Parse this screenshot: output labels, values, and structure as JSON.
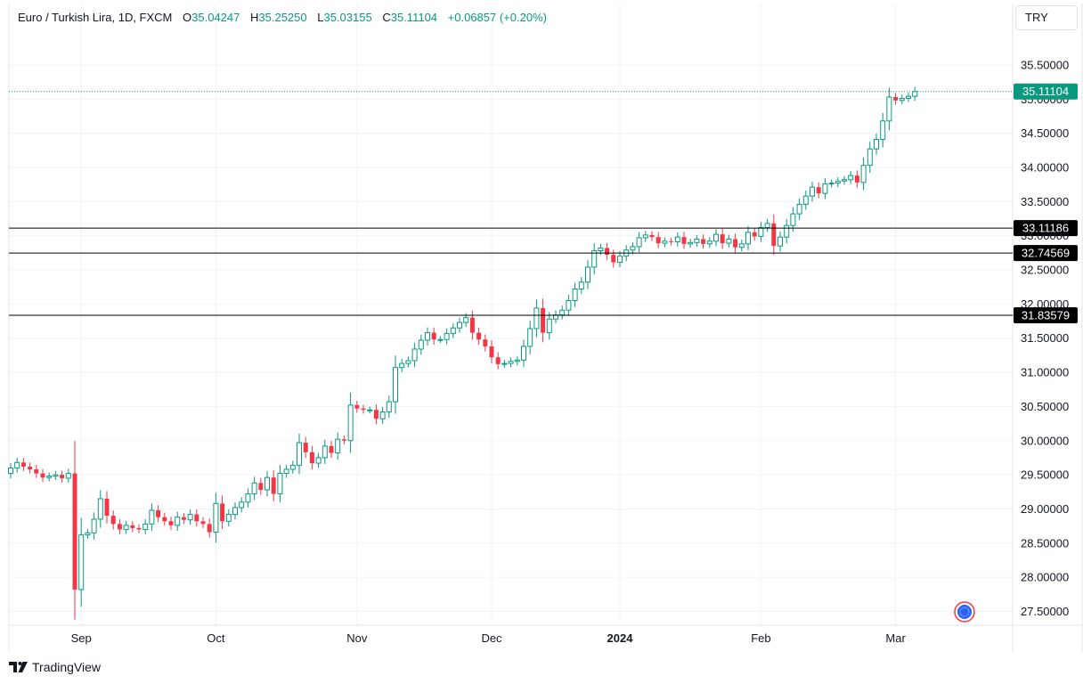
{
  "header": {
    "symbol": "Euro / Turkish Lira, 1D, FXCM",
    "o_label": "O",
    "o_value": "35.04247",
    "h_label": "H",
    "h_value": "35.25250",
    "l_label": "L",
    "l_value": "35.03155",
    "c_label": "C",
    "c_value": "35.11104",
    "change": "+0.06857 (+0.20%)"
  },
  "currency": "TRY",
  "brand": "TradingView",
  "colors": {
    "up": "#089981",
    "down": "#f23645",
    "grid": "#f0f3fa",
    "line": "#000000"
  },
  "chart_data": {
    "type": "candlestick",
    "x_ticks": [
      {
        "label": "Sep",
        "index": 11,
        "bold": false
      },
      {
        "label": "Oct",
        "index": 32,
        "bold": false
      },
      {
        "label": "Nov",
        "index": 54,
        "bold": false
      },
      {
        "label": "Dec",
        "index": 75,
        "bold": false
      },
      {
        "label": "2024",
        "index": 95,
        "bold": true
      },
      {
        "label": "Feb",
        "index": 117,
        "bold": false
      },
      {
        "label": "Mar",
        "index": 138,
        "bold": false
      }
    ],
    "y_ticks": [
      "27.50000",
      "28.00000",
      "28.50000",
      "29.00000",
      "29.50000",
      "30.00000",
      "30.50000",
      "31.00000",
      "31.50000",
      "32.00000",
      "32.50000",
      "33.00000",
      "33.50000",
      "34.00000",
      "34.50000",
      "35.00000",
      "35.50000"
    ],
    "ylim": [
      27.1,
      35.9
    ],
    "last_price": "35.11104",
    "horizontal_levels": [
      "33.11186",
      "32.74569",
      "31.83579"
    ],
    "closes": [
      29.6,
      29.68,
      29.62,
      29.58,
      29.52,
      29.46,
      29.48,
      29.5,
      29.45,
      29.52,
      27.82,
      28.62,
      28.65,
      28.85,
      29.15,
      28.9,
      28.78,
      28.7,
      28.76,
      28.72,
      28.7,
      28.78,
      28.98,
      28.88,
      28.82,
      28.76,
      28.88,
      28.84,
      28.92,
      28.82,
      28.78,
      28.66,
      29.08,
      28.82,
      28.92,
      29.02,
      29.1,
      29.22,
      29.38,
      29.28,
      29.46,
      29.22,
      29.52,
      29.58,
      29.64,
      29.97,
      29.83,
      29.67,
      29.75,
      29.92,
      29.82,
      30.02,
      30.0,
      30.52,
      30.47,
      30.45,
      30.45,
      30.32,
      30.42,
      30.57,
      31.07,
      31.13,
      31.17,
      31.34,
      31.47,
      31.58,
      31.48,
      31.48,
      31.57,
      31.65,
      31.73,
      31.8,
      31.58,
      31.48,
      31.38,
      31.22,
      31.12,
      31.13,
      31.16,
      31.18,
      31.38,
      31.64,
      31.94,
      31.58,
      31.78,
      31.84,
      31.91,
      32.05,
      32.22,
      32.32,
      32.54,
      32.78,
      32.82,
      32.72,
      32.61,
      32.7,
      32.79,
      32.84,
      32.97,
      33.01,
      32.98,
      32.89,
      32.92,
      32.91,
      32.98,
      32.88,
      32.9,
      32.95,
      32.88,
      32.92,
      33.02,
      32.89,
      32.95,
      32.83,
      32.88,
      33.05,
      32.99,
      33.12,
      33.18,
      32.85,
      32.98,
      33.15,
      33.32,
      33.46,
      33.58,
      33.71,
      33.62,
      33.76,
      33.77,
      33.8,
      33.82,
      33.88,
      33.78,
      34.03,
      34.27,
      34.41,
      34.68,
      35.03,
      34.98,
      35.01,
      35.04,
      35.11
    ]
  }
}
